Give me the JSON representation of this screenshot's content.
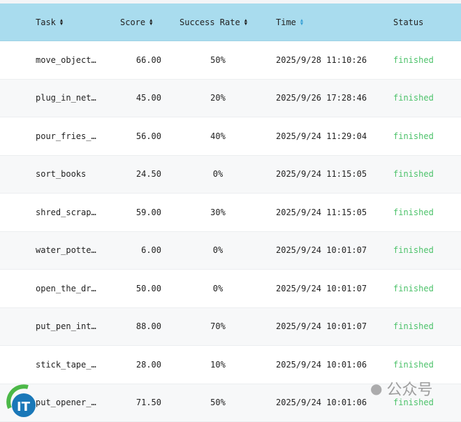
{
  "table": {
    "columns": [
      {
        "label": "Task",
        "sortable": true
      },
      {
        "label": "Score",
        "sortable": true
      },
      {
        "label": "Success Rate",
        "sortable": true
      },
      {
        "label": "Time",
        "sortable": true,
        "active": true
      },
      {
        "label": "Status",
        "sortable": false
      }
    ],
    "rows": [
      {
        "task": "move_object…",
        "score": "66.00",
        "rate": "50%",
        "time": "2025/9/28 11:10:26",
        "status": "finished"
      },
      {
        "task": "plug_in_net…",
        "score": "45.00",
        "rate": "20%",
        "time": "2025/9/26 17:28:46",
        "status": "finished"
      },
      {
        "task": "pour_fries_…",
        "score": "56.00",
        "rate": "40%",
        "time": "2025/9/24 11:29:04",
        "status": "finished"
      },
      {
        "task": "sort_books",
        "score": "24.50",
        "rate": "0%",
        "time": "2025/9/24 11:15:05",
        "status": "finished"
      },
      {
        "task": "shred_scrap…",
        "score": "59.00",
        "rate": "30%",
        "time": "2025/9/24 11:15:05",
        "status": "finished"
      },
      {
        "task": "water_potte…",
        "score": "6.00",
        "rate": "0%",
        "time": "2025/9/24 10:01:07",
        "status": "finished"
      },
      {
        "task": "open_the_dr…",
        "score": "50.00",
        "rate": "0%",
        "time": "2025/9/24 10:01:07",
        "status": "finished"
      },
      {
        "task": "put_pen_int…",
        "score": "88.00",
        "rate": "70%",
        "time": "2025/9/24 10:01:07",
        "status": "finished"
      },
      {
        "task": "stick_tape_…",
        "score": "28.00",
        "rate": "10%",
        "time": "2025/9/24 10:01:06",
        "status": "finished"
      },
      {
        "task": "put_opener_…",
        "score": "71.50",
        "rate": "50%",
        "time": "2025/9/24 10:01:06",
        "status": "finished"
      }
    ]
  },
  "colors": {
    "header_bg": "#a9dcee",
    "status_finished": "#4cc26a",
    "sort_active": "#3aa1d6"
  },
  "watermark": {
    "logo_text": "IT",
    "label": "公众号"
  }
}
